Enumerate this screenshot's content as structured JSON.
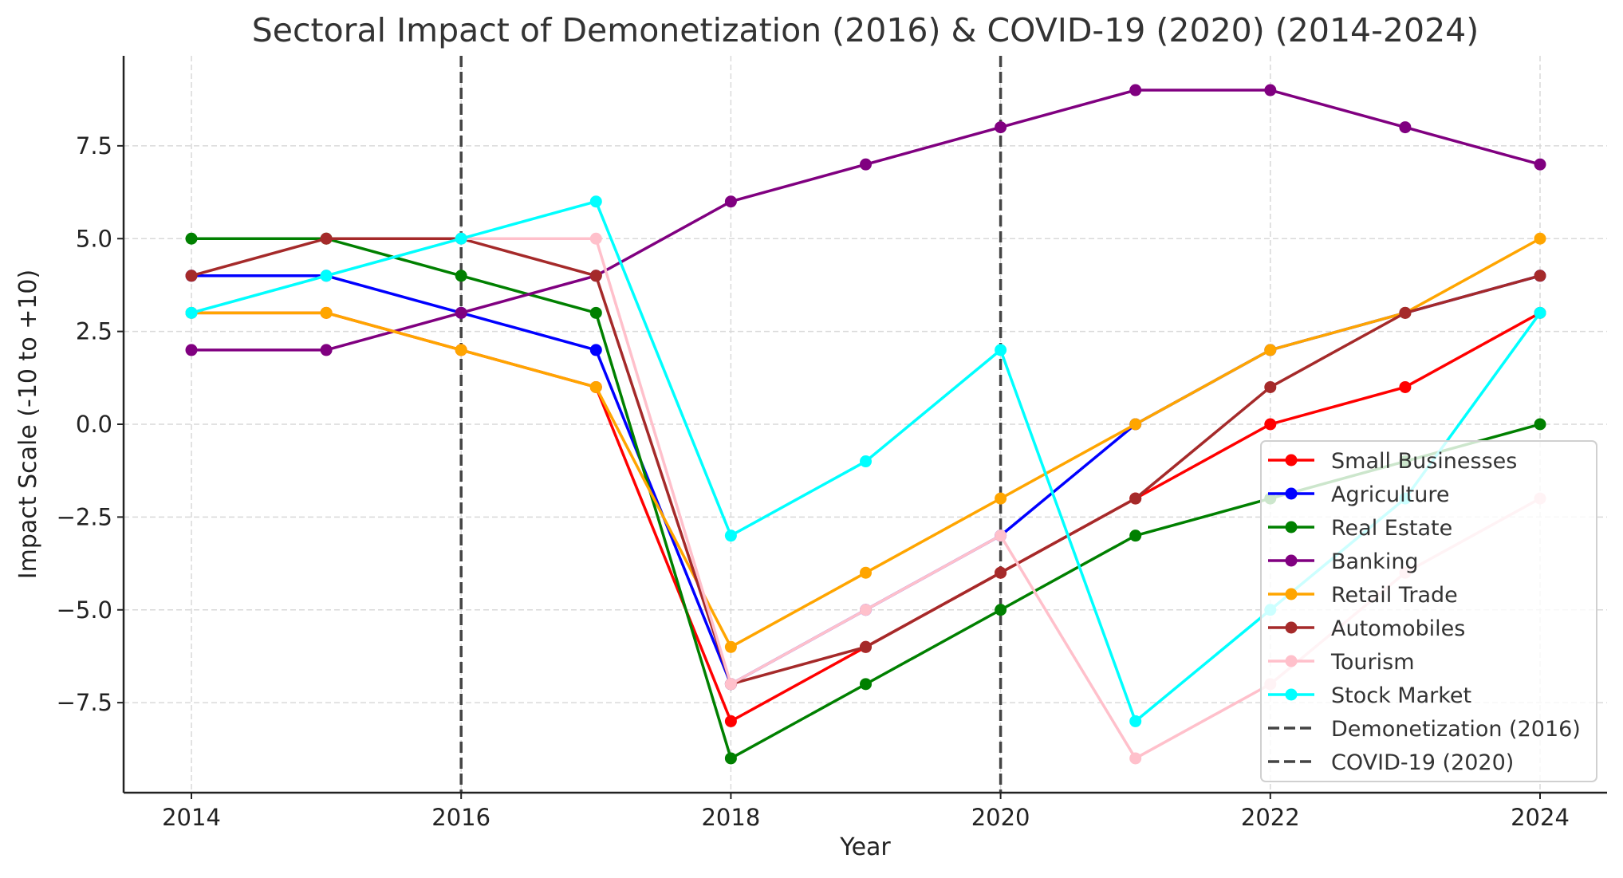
{
  "chart_data": {
    "type": "line",
    "title": "Sectoral Impact of Demonetization (2016) & COVID-19 (2020) (2014-2024)",
    "xlabel": "Year",
    "ylabel": "Impact Scale (-10 to +10)",
    "x": [
      2014,
      2015,
      2016,
      2017,
      2018,
      2019,
      2020,
      2021,
      2022,
      2023,
      2024
    ],
    "xlim": [
      2013.5,
      2024.5
    ],
    "ylim": [
      -9.8,
      9.9
    ],
    "xticks": [
      "2014",
      "2016",
      "2018",
      "2020",
      "2022",
      "2024"
    ],
    "yticks": [
      {
        "value": -7.5,
        "label": "−7.5"
      },
      {
        "value": -5,
        "label": "−5.0"
      },
      {
        "value": -2.5,
        "label": "−2.5"
      },
      {
        "value": 0,
        "label": "0.0"
      },
      {
        "value": 2.5,
        "label": "2.5"
      },
      {
        "value": 5,
        "label": "5.0"
      },
      {
        "value": 7.5,
        "label": "7.5"
      }
    ],
    "grid": true,
    "legend_position": "lower-right",
    "series": [
      {
        "name": "Small Businesses",
        "color": "#ff0000",
        "values": [
          3,
          3,
          2,
          1,
          -8,
          -6,
          -4,
          -2,
          0,
          1,
          3
        ]
      },
      {
        "name": "Agriculture",
        "color": "#0000ff",
        "values": [
          4,
          4,
          3,
          2,
          -7,
          -5,
          -3,
          0,
          2,
          3,
          4
        ]
      },
      {
        "name": "Real Estate",
        "color": "#008000",
        "values": [
          5,
          5,
          4,
          3,
          -9,
          -7,
          -5,
          -3,
          -2,
          -1,
          0
        ]
      },
      {
        "name": "Banking",
        "color": "#800080",
        "values": [
          2,
          2,
          3,
          4,
          6,
          7,
          8,
          9,
          9,
          8,
          7
        ]
      },
      {
        "name": "Retail Trade",
        "color": "#ffa500",
        "values": [
          3,
          3,
          2,
          1,
          -6,
          -4,
          -2,
          0,
          2,
          3,
          5
        ]
      },
      {
        "name": "Automobiles",
        "color": "#a52a2a",
        "values": [
          4,
          5,
          5,
          4,
          -7,
          -6,
          -4,
          -2,
          1,
          3,
          4
        ]
      },
      {
        "name": "Tourism",
        "color": "#ffc0cb",
        "values": [
          3,
          4,
          5,
          5,
          -7,
          -5,
          -3,
          -9,
          -7,
          -4,
          -2
        ]
      },
      {
        "name": "Stock Market",
        "color": "#00ffff",
        "values": [
          3,
          4,
          5,
          6,
          -3,
          -1,
          2,
          -8,
          -5,
          -2,
          3
        ]
      }
    ],
    "vlines": [
      {
        "name": "Demonetization (2016)",
        "x": 2016,
        "color": "#444444",
        "style": "dashed"
      },
      {
        "name": "COVID-19 (2020)",
        "x": 2020,
        "color": "#444444",
        "style": "dashed"
      }
    ]
  }
}
